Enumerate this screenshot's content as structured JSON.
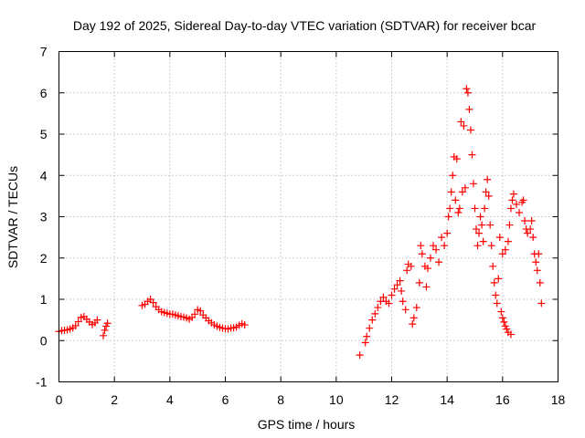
{
  "chart_data": {
    "type": "scatter",
    "title": "Day 192 of 2025, Sidereal Day-to-day VTEC variation (SDTVAR) for receiver bcar",
    "xlabel": "GPS time / hours",
    "ylabel": "SDTVAR / TECUs",
    "xlim": [
      0,
      18
    ],
    "ylim": [
      -1,
      7
    ],
    "xticks": [
      0,
      2,
      4,
      6,
      8,
      10,
      12,
      14,
      16,
      18
    ],
    "yticks": [
      -1,
      0,
      1,
      2,
      3,
      4,
      5,
      6,
      7
    ],
    "xtick_labels": [
      "0",
      "2",
      "4",
      "6",
      "8",
      "10",
      "12",
      "14",
      "16",
      "18"
    ],
    "ytick_labels": [
      "-1",
      "0",
      "1",
      "2",
      "3",
      "4",
      "5",
      "6",
      "7"
    ],
    "grid": true,
    "marker": "+",
    "series": [
      {
        "name": "SDTVAR",
        "color": "#ff0000",
        "points": [
          [
            0.0,
            0.22
          ],
          [
            0.1,
            0.24
          ],
          [
            0.2,
            0.25
          ],
          [
            0.3,
            0.26
          ],
          [
            0.4,
            0.28
          ],
          [
            0.5,
            0.31
          ],
          [
            0.6,
            0.36
          ],
          [
            0.7,
            0.46
          ],
          [
            0.8,
            0.56
          ],
          [
            0.9,
            0.58
          ],
          [
            1.0,
            0.52
          ],
          [
            1.1,
            0.45
          ],
          [
            1.2,
            0.39
          ],
          [
            1.3,
            0.43
          ],
          [
            1.38,
            0.5
          ],
          [
            1.6,
            0.12
          ],
          [
            1.65,
            0.25
          ],
          [
            1.7,
            0.35
          ],
          [
            1.75,
            0.42
          ],
          [
            3.0,
            0.85
          ],
          [
            3.1,
            0.88
          ],
          [
            3.2,
            0.95
          ],
          [
            3.3,
            1.0
          ],
          [
            3.4,
            0.92
          ],
          [
            3.5,
            0.82
          ],
          [
            3.6,
            0.75
          ],
          [
            3.7,
            0.7
          ],
          [
            3.8,
            0.68
          ],
          [
            3.9,
            0.66
          ],
          [
            4.0,
            0.64
          ],
          [
            4.1,
            0.64
          ],
          [
            4.2,
            0.62
          ],
          [
            4.3,
            0.6
          ],
          [
            4.4,
            0.58
          ],
          [
            4.5,
            0.57
          ],
          [
            4.6,
            0.55
          ],
          [
            4.7,
            0.52
          ],
          [
            4.8,
            0.56
          ],
          [
            4.9,
            0.64
          ],
          [
            5.0,
            0.75
          ],
          [
            5.1,
            0.72
          ],
          [
            5.2,
            0.62
          ],
          [
            5.3,
            0.55
          ],
          [
            5.4,
            0.48
          ],
          [
            5.5,
            0.43
          ],
          [
            5.6,
            0.38
          ],
          [
            5.7,
            0.35
          ],
          [
            5.8,
            0.32
          ],
          [
            5.9,
            0.3
          ],
          [
            6.0,
            0.29
          ],
          [
            6.1,
            0.28
          ],
          [
            6.2,
            0.3
          ],
          [
            6.3,
            0.31
          ],
          [
            6.4,
            0.33
          ],
          [
            6.5,
            0.37
          ],
          [
            6.6,
            0.41
          ],
          [
            6.7,
            0.38
          ],
          [
            10.85,
            -0.35
          ],
          [
            11.05,
            -0.05
          ],
          [
            11.1,
            0.1
          ],
          [
            11.2,
            0.3
          ],
          [
            11.3,
            0.5
          ],
          [
            11.4,
            0.65
          ],
          [
            11.5,
            0.8
          ],
          [
            11.6,
            0.95
          ],
          [
            11.7,
            1.05
          ],
          [
            11.8,
            0.95
          ],
          [
            11.9,
            0.9
          ],
          [
            12.0,
            1.1
          ],
          [
            12.1,
            1.25
          ],
          [
            12.2,
            1.35
          ],
          [
            12.3,
            1.45
          ],
          [
            12.35,
            1.2
          ],
          [
            12.4,
            0.95
          ],
          [
            12.5,
            0.75
          ],
          [
            12.55,
            1.7
          ],
          [
            12.6,
            1.85
          ],
          [
            12.7,
            1.8
          ],
          [
            12.75,
            0.4
          ],
          [
            12.8,
            0.55
          ],
          [
            12.9,
            0.8
          ],
          [
            13.0,
            1.4
          ],
          [
            13.05,
            2.3
          ],
          [
            13.1,
            2.1
          ],
          [
            13.2,
            1.8
          ],
          [
            13.25,
            1.3
          ],
          [
            13.3,
            1.75
          ],
          [
            13.4,
            2.0
          ],
          [
            13.5,
            2.3
          ],
          [
            13.6,
            2.2
          ],
          [
            13.7,
            1.9
          ],
          [
            13.8,
            2.5
          ],
          [
            13.9,
            2.3
          ],
          [
            14.0,
            2.6
          ],
          [
            14.05,
            3.0
          ],
          [
            14.1,
            3.2
          ],
          [
            14.15,
            3.6
          ],
          [
            14.2,
            4.0
          ],
          [
            14.25,
            4.45
          ],
          [
            14.3,
            3.4
          ],
          [
            14.35,
            4.4
          ],
          [
            14.4,
            3.1
          ],
          [
            14.45,
            3.2
          ],
          [
            14.5,
            5.3
          ],
          [
            14.55,
            3.6
          ],
          [
            14.6,
            5.2
          ],
          [
            14.65,
            3.7
          ],
          [
            14.7,
            6.1
          ],
          [
            14.75,
            6.0
          ],
          [
            14.8,
            5.6
          ],
          [
            14.85,
            5.1
          ],
          [
            14.9,
            4.5
          ],
          [
            14.95,
            3.8
          ],
          [
            15.0,
            3.2
          ],
          [
            15.05,
            2.7
          ],
          [
            15.1,
            2.3
          ],
          [
            15.15,
            2.6
          ],
          [
            15.2,
            3.0
          ],
          [
            15.25,
            2.8
          ],
          [
            15.3,
            2.4
          ],
          [
            15.35,
            3.2
          ],
          [
            15.4,
            3.6
          ],
          [
            15.45,
            3.9
          ],
          [
            15.5,
            3.5
          ],
          [
            15.55,
            2.8
          ],
          [
            15.6,
            2.3
          ],
          [
            15.65,
            1.8
          ],
          [
            15.7,
            1.4
          ],
          [
            15.75,
            1.1
          ],
          [
            15.8,
            0.9
          ],
          [
            15.85,
            1.5
          ],
          [
            15.9,
            2.5
          ],
          [
            15.95,
            0.7
          ],
          [
            16.0,
            0.55
          ],
          [
            16.05,
            0.45
          ],
          [
            16.1,
            0.35
          ],
          [
            16.15,
            0.28
          ],
          [
            16.2,
            0.2
          ],
          [
            16.3,
            0.15
          ],
          [
            16.0,
            2.1
          ],
          [
            16.1,
            2.2
          ],
          [
            16.2,
            2.4
          ],
          [
            16.25,
            2.8
          ],
          [
            16.3,
            3.2
          ],
          [
            16.35,
            3.4
          ],
          [
            16.4,
            3.55
          ],
          [
            16.5,
            3.3
          ],
          [
            16.6,
            3.1
          ],
          [
            16.7,
            3.35
          ],
          [
            16.75,
            3.4
          ],
          [
            16.8,
            2.9
          ],
          [
            16.85,
            2.7
          ],
          [
            16.9,
            2.6
          ],
          [
            17.0,
            2.7
          ],
          [
            17.05,
            2.9
          ],
          [
            17.1,
            2.5
          ],
          [
            17.15,
            2.1
          ],
          [
            17.2,
            1.9
          ],
          [
            17.25,
            1.7
          ],
          [
            17.3,
            2.1
          ],
          [
            17.35,
            1.4
          ],
          [
            17.4,
            0.9
          ]
        ]
      }
    ]
  }
}
